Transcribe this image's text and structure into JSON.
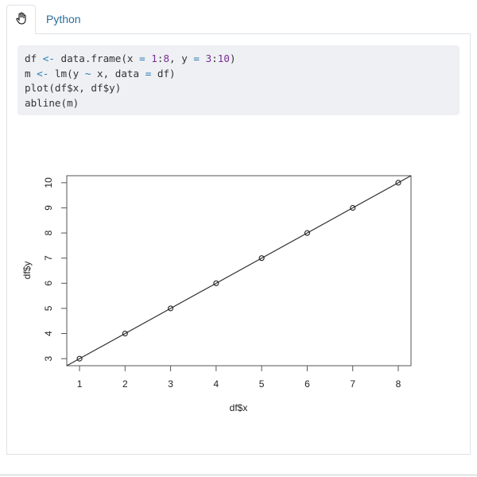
{
  "tabs": [
    {
      "label": "",
      "icon": "hand-cursor-icon",
      "active": true
    },
    {
      "label": "Python",
      "active": false
    }
  ],
  "code": {
    "lines": [
      [
        {
          "t": "df "
        },
        {
          "t": "<-",
          "c": "op"
        },
        {
          "t": " data.frame(x "
        },
        {
          "t": "=",
          "c": "op"
        },
        {
          "t": " "
        },
        {
          "t": "1",
          "c": "num"
        },
        {
          "t": ":"
        },
        {
          "t": "8",
          "c": "num"
        },
        {
          "t": ", y "
        },
        {
          "t": "=",
          "c": "op"
        },
        {
          "t": " "
        },
        {
          "t": "3",
          "c": "num"
        },
        {
          "t": ":"
        },
        {
          "t": "10",
          "c": "num"
        },
        {
          "t": ")"
        }
      ],
      [
        {
          "t": "m "
        },
        {
          "t": "<-",
          "c": "op"
        },
        {
          "t": " lm(y "
        },
        {
          "t": "~",
          "c": "op"
        },
        {
          "t": " x, data "
        },
        {
          "t": "=",
          "c": "op"
        },
        {
          "t": " df)"
        }
      ],
      [
        {
          "t": "plot(df$x, df$y)"
        }
      ],
      [
        {
          "t": "abline(m)"
        }
      ]
    ]
  },
  "chart_data": {
    "type": "scatter",
    "x": [
      1,
      2,
      3,
      4,
      5,
      6,
      7,
      8
    ],
    "y": [
      3,
      4,
      5,
      6,
      7,
      8,
      9,
      10
    ],
    "xlabel": "df$x",
    "ylabel": "df$y",
    "xticks": [
      1,
      2,
      3,
      4,
      5,
      6,
      7,
      8
    ],
    "yticks": [
      3,
      4,
      5,
      6,
      7,
      8,
      9,
      10
    ],
    "xlim": [
      0.72,
      8.28
    ],
    "ylim": [
      2.72,
      10.28
    ],
    "fit_line": {
      "intercept": 2,
      "slope": 1
    },
    "marker": "open-circle",
    "grid": false
  }
}
